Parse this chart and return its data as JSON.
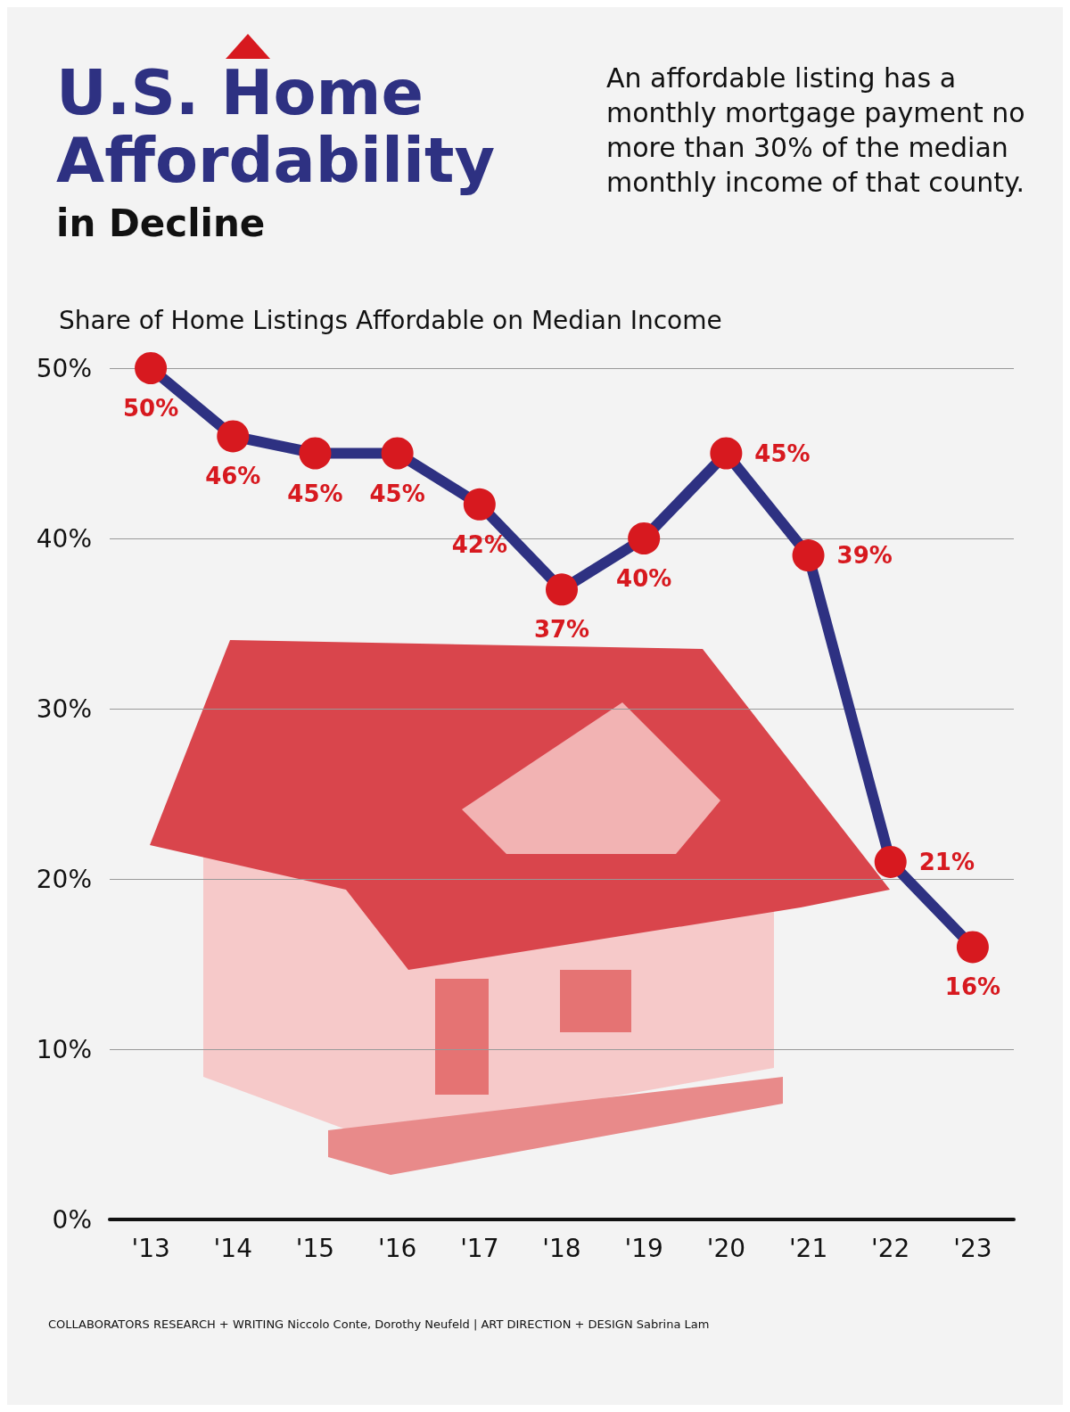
{
  "chart_data": {
    "type": "line",
    "title": "U.S. Home Affordability",
    "subtitle": "in Decline",
    "ylabel": "Share of Home Listings Affordable on Median Income",
    "categories": [
      "'13",
      "'14",
      "'15",
      "'16",
      "'17",
      "'18",
      "'19",
      "'20",
      "'21",
      "'22",
      "'23"
    ],
    "series": [
      {
        "color": "#2e3182",
        "colors": [
          "#d7191f",
          "#d7191f",
          "#d7191f",
          "#d7191f",
          "#d7191f",
          "#d7191f",
          "#d7191f",
          "#d7191f",
          "#d7191f",
          "#d7191f",
          "#d7191f"
        ],
        "values": [
          50,
          46,
          45,
          45,
          42,
          37,
          40,
          45,
          39,
          21,
          16
        ],
        "value_labels": [
          "50%",
          "46%",
          "45%",
          "45%",
          "42%",
          "37%",
          "40%",
          "45%",
          "39%",
          "21%",
          "16%"
        ]
      }
    ],
    "ylim": [
      0,
      50
    ],
    "yticks": [
      {
        "value": 0,
        "label": "0%"
      },
      {
        "value": 10,
        "label": "10%"
      },
      {
        "value": 20,
        "label": "20%"
      },
      {
        "value": 30,
        "label": "30%"
      },
      {
        "value": 40,
        "label": "40%"
      },
      {
        "value": 50,
        "label": "50%"
      }
    ],
    "grid": "y",
    "marker": "circle",
    "annotations": [
      "An affordable listing has a monthly mortgage payment no more than 30% of the median monthly income of that county.",
      "COLLABORATORS  RESEARCH + WRITING Niccolo Conte, Dorothy Neufeld | ART DIRECTION + DESIGN Sabrina Lam"
    ]
  }
}
